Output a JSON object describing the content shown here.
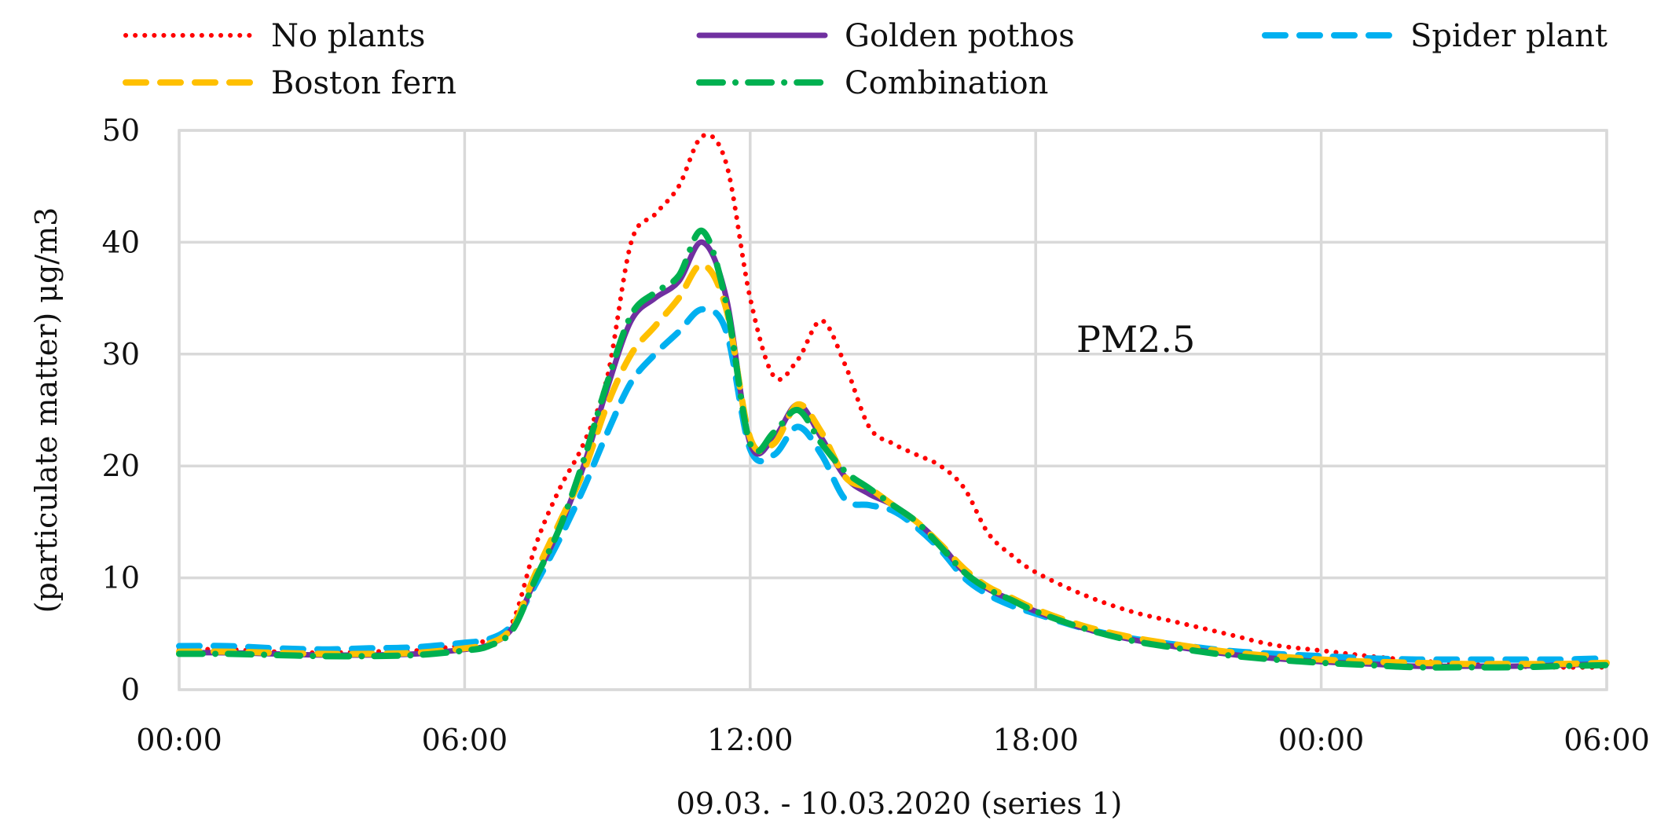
{
  "chart_data": {
    "type": "line",
    "title": "",
    "annotation": "PM2.5",
    "xlabel": "09.03. - 10.03.2020 (series 1)",
    "ylabel": "(particulate matter) μg/m3",
    "x_tick_labels": [
      "00:00",
      "06:00",
      "12:00",
      "18:00",
      "00:00",
      "06:00"
    ],
    "x_tick_values": [
      0,
      6,
      12,
      18,
      24,
      30
    ],
    "y_ticks": [
      0,
      10,
      20,
      30,
      40,
      50
    ],
    "xlim": [
      0,
      30
    ],
    "ylim": [
      0,
      50
    ],
    "grid": true,
    "legend_position": "top",
    "x": [
      0,
      1,
      2,
      3,
      4,
      5,
      6,
      6.5,
      7,
      7.5,
      8,
      8.5,
      9,
      9.5,
      10,
      10.5,
      11,
      11.5,
      12,
      12.5,
      13,
      13.5,
      14,
      14.5,
      15,
      15.5,
      16,
      16.5,
      17,
      17.5,
      18,
      19,
      20,
      21,
      22,
      23,
      24,
      25,
      26,
      27,
      28,
      29,
      30
    ],
    "series": [
      {
        "name": "No plants",
        "style": "dotted",
        "color": "#ff0000",
        "values": [
          3.6,
          3.6,
          3.4,
          3.3,
          3.4,
          3.5,
          4.0,
          4.5,
          6.0,
          13.0,
          18.0,
          22.0,
          28.0,
          40.0,
          42.5,
          45.0,
          49.5,
          47.0,
          35.0,
          28.0,
          29.5,
          33.0,
          29.0,
          23.5,
          22.0,
          21.0,
          20.0,
          18.0,
          14.0,
          12.0,
          10.5,
          8.5,
          7.0,
          6.0,
          5.0,
          4.0,
          3.5,
          3.0,
          2.6,
          2.3,
          2.1,
          2.0,
          2.0
        ]
      },
      {
        "name": "Golden pothos",
        "style": "solid",
        "color": "#7030a0",
        "values": [
          3.3,
          3.3,
          3.2,
          3.1,
          3.1,
          3.2,
          3.6,
          4.0,
          5.5,
          10.0,
          14.5,
          20.0,
          27.0,
          33.0,
          35.0,
          36.5,
          40.0,
          35.0,
          22.0,
          22.5,
          25.5,
          22.5,
          19.0,
          17.5,
          16.5,
          15.0,
          13.0,
          10.5,
          9.0,
          8.0,
          7.0,
          5.5,
          4.5,
          3.8,
          3.2,
          2.8,
          2.5,
          2.3,
          2.1,
          2.1,
          2.1,
          2.2,
          2.3
        ]
      },
      {
        "name": "Spider plant",
        "style": "dashed",
        "color": "#00b0f0",
        "values": [
          3.9,
          3.9,
          3.7,
          3.6,
          3.7,
          3.8,
          4.2,
          4.5,
          5.8,
          9.5,
          13.5,
          18.0,
          23.0,
          27.5,
          30.0,
          32.0,
          34.0,
          32.0,
          21.5,
          21.0,
          23.5,
          21.0,
          17.0,
          16.5,
          16.0,
          14.5,
          12.5,
          10.0,
          8.5,
          7.5,
          6.8,
          5.5,
          4.6,
          4.0,
          3.5,
          3.2,
          3.0,
          2.8,
          2.7,
          2.7,
          2.7,
          2.7,
          2.8
        ]
      },
      {
        "name": "Boston fern",
        "style": "dashed",
        "color": "#ffc000",
        "values": [
          3.4,
          3.4,
          3.3,
          3.2,
          3.2,
          3.3,
          3.7,
          4.1,
          5.6,
          10.5,
          15.0,
          19.5,
          25.5,
          30.0,
          32.5,
          35.0,
          38.0,
          34.0,
          22.5,
          22.0,
          25.5,
          23.0,
          19.0,
          18.0,
          16.5,
          15.0,
          13.0,
          10.8,
          9.2,
          8.2,
          7.2,
          5.7,
          4.7,
          4.0,
          3.4,
          3.0,
          2.7,
          2.5,
          2.4,
          2.3,
          2.3,
          2.3,
          2.4
        ]
      },
      {
        "name": "Combination",
        "style": "dashdot",
        "color": "#00b050",
        "values": [
          3.2,
          3.2,
          3.1,
          3.0,
          3.0,
          3.1,
          3.5,
          3.9,
          5.3,
          10.0,
          14.5,
          20.5,
          27.5,
          33.5,
          35.5,
          37.0,
          41.0,
          34.5,
          22.0,
          23.0,
          25.0,
          22.0,
          19.5,
          18.0,
          16.5,
          15.0,
          12.8,
          10.5,
          9.0,
          8.0,
          7.0,
          5.5,
          4.4,
          3.7,
          3.1,
          2.7,
          2.4,
          2.2,
          2.0,
          2.0,
          2.0,
          2.1,
          2.2
        ]
      }
    ],
    "legend_order": [
      "No plants",
      "Golden pothos",
      "Spider plant",
      "Boston fern",
      "Combination"
    ]
  }
}
